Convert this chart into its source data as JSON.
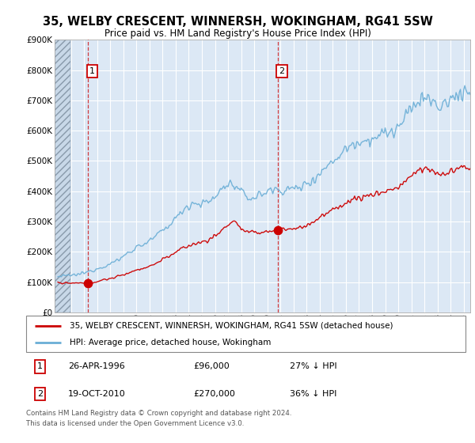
{
  "title": "35, WELBY CRESCENT, WINNERSH, WOKINGHAM, RG41 5SW",
  "subtitle": "Price paid vs. HM Land Registry's House Price Index (HPI)",
  "ylim": [
    0,
    900000
  ],
  "yticks": [
    0,
    100000,
    200000,
    300000,
    400000,
    500000,
    600000,
    700000,
    800000,
    900000
  ],
  "ytick_labels": [
    "£0",
    "£100K",
    "£200K",
    "£300K",
    "£400K",
    "£500K",
    "£600K",
    "£700K",
    "£800K",
    "£900K"
  ],
  "xlim_start": 1993.75,
  "xlim_end": 2025.5,
  "hatch_end": 1994.95,
  "transaction1_x": 1996.32,
  "transaction1_y": 96000,
  "transaction2_x": 2010.8,
  "transaction2_y": 270000,
  "line_red_color": "#cc0000",
  "line_blue_color": "#6aaed6",
  "legend_red_label": "35, WELBY CRESCENT, WINNERSH, WOKINGHAM, RG41 5SW (detached house)",
  "legend_blue_label": "HPI: Average price, detached house, Wokingham",
  "footer": "Contains HM Land Registry data © Crown copyright and database right 2024.\nThis data is licensed under the Open Government Licence v3.0.",
  "background_color": "#ffffff",
  "plot_bg_color": "#dce8f5",
  "grid_color": "#ffffff"
}
